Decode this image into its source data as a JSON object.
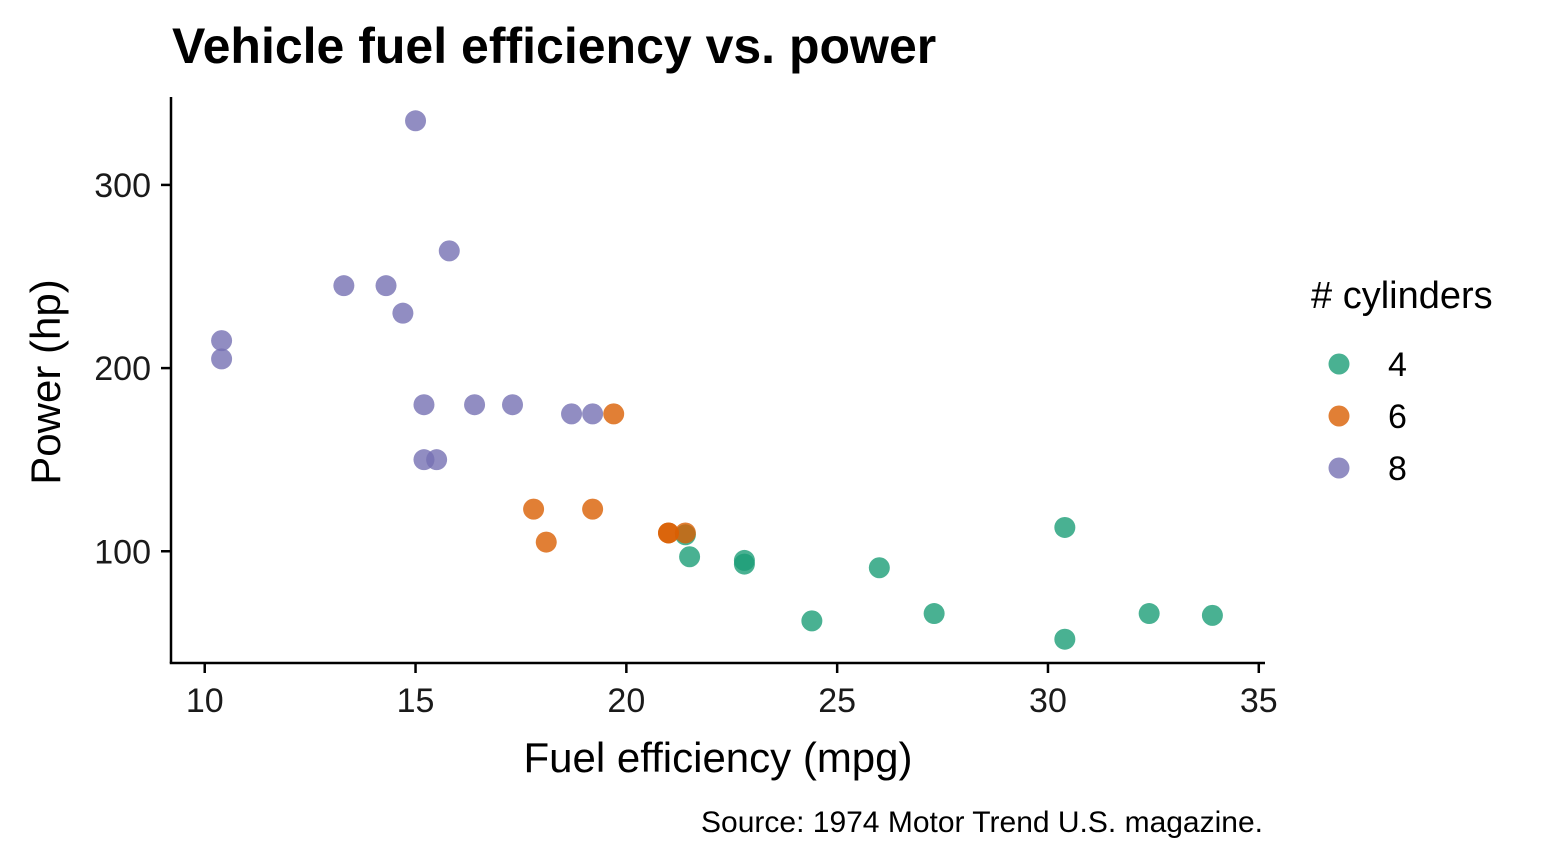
{
  "chart_data": {
    "type": "scatter",
    "title": "Vehicle fuel efficiency vs. power",
    "xlabel": "Fuel efficiency (mpg)",
    "ylabel": "Power (hp)",
    "caption": "Source: 1974 Motor Trend U.S. magazine.",
    "xlim": [
      9.2,
      35.1
    ],
    "ylim": [
      39,
      348
    ],
    "xticks": [
      10,
      15,
      20,
      25,
      30,
      35
    ],
    "yticks": [
      100,
      200,
      300
    ],
    "grid": false,
    "legend": {
      "title": "# cylinders",
      "position": "right"
    },
    "series": [
      {
        "name": "4",
        "color": "#1b9e77",
        "points": [
          {
            "x": 22.8,
            "y": 93
          },
          {
            "x": 24.4,
            "y": 62
          },
          {
            "x": 22.8,
            "y": 95
          },
          {
            "x": 32.4,
            "y": 66
          },
          {
            "x": 30.4,
            "y": 52
          },
          {
            "x": 33.9,
            "y": 65
          },
          {
            "x": 21.5,
            "y": 97
          },
          {
            "x": 27.3,
            "y": 66
          },
          {
            "x": 26.0,
            "y": 91
          },
          {
            "x": 30.4,
            "y": 113
          },
          {
            "x": 21.4,
            "y": 109
          }
        ]
      },
      {
        "name": "6",
        "color": "#d95f02",
        "points": [
          {
            "x": 21.0,
            "y": 110
          },
          {
            "x": 21.0,
            "y": 110
          },
          {
            "x": 21.4,
            "y": 110
          },
          {
            "x": 18.1,
            "y": 105
          },
          {
            "x": 19.2,
            "y": 123
          },
          {
            "x": 17.8,
            "y": 123
          },
          {
            "x": 19.7,
            "y": 175
          }
        ]
      },
      {
        "name": "8",
        "color": "#7570b3",
        "points": [
          {
            "x": 18.7,
            "y": 175
          },
          {
            "x": 14.3,
            "y": 245
          },
          {
            "x": 16.4,
            "y": 180
          },
          {
            "x": 17.3,
            "y": 180
          },
          {
            "x": 15.2,
            "y": 180
          },
          {
            "x": 10.4,
            "y": 205
          },
          {
            "x": 10.4,
            "y": 215
          },
          {
            "x": 14.7,
            "y": 230
          },
          {
            "x": 15.5,
            "y": 150
          },
          {
            "x": 15.2,
            "y": 150
          },
          {
            "x": 13.3,
            "y": 245
          },
          {
            "x": 19.2,
            "y": 175
          },
          {
            "x": 15.8,
            "y": 264
          },
          {
            "x": 15.0,
            "y": 335
          }
        ]
      }
    ]
  }
}
